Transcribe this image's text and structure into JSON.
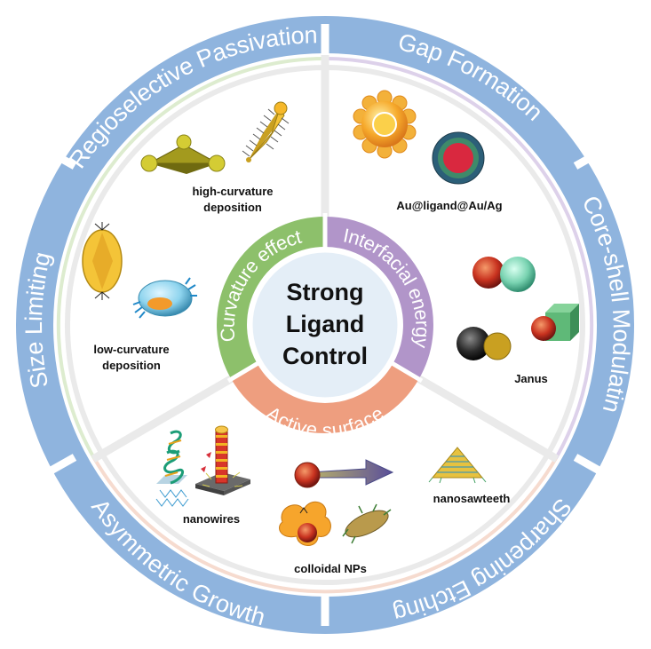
{
  "outer_ring": {
    "color": "#8fb4de",
    "labels": {
      "regioselective": "Regioselective Passivation",
      "gap": "Gap Formation",
      "coreshell": "Core-shell Modulating",
      "sharpening": "Sharpening Etching",
      "asymmetric": "Asymmetric Growth",
      "size": "Size Limiting"
    }
  },
  "middle_ring": {
    "curvature": {
      "label": "Curvature effect",
      "color": "#8dc06b"
    },
    "interfacial": {
      "label": "Interfacial energy",
      "color": "#b195c9"
    },
    "active": {
      "label": "Active surface",
      "color": "#ee9e7f"
    }
  },
  "center": {
    "line1": "Strong",
    "line2": "Ligand",
    "line3": "Control",
    "fill": "#e4eef7"
  },
  "captions": {
    "high_curv_1": "high-curvature",
    "high_curv_2": "deposition",
    "low_curv_1": "low-curvature",
    "low_curv_2": "deposition",
    "au_ligand": "Au@ligand@Au/Ag",
    "janus": "Janus",
    "nanowires": "nanowires",
    "colloidal": "colloidal NPs",
    "nanosawteeth": "nanosawteeth"
  }
}
